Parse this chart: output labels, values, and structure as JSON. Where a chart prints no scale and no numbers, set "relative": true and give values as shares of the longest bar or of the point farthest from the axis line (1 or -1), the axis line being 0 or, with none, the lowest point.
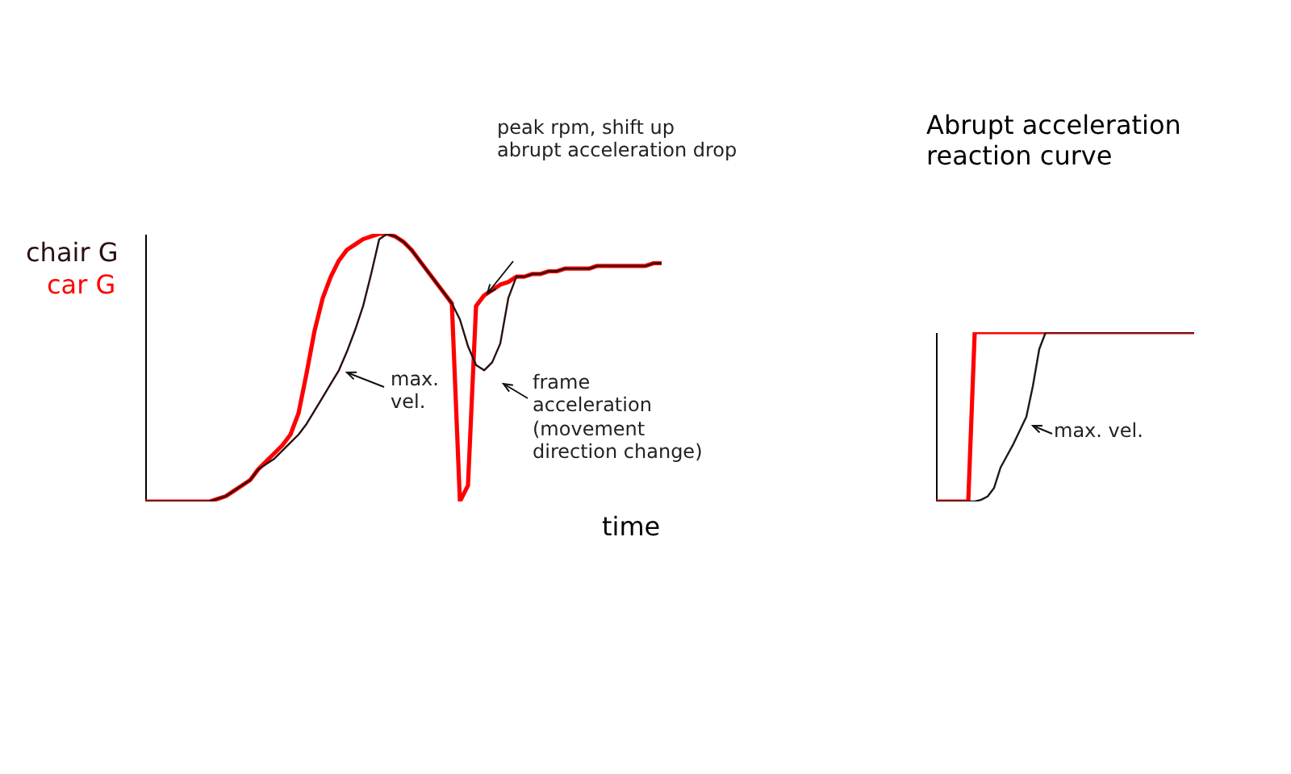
{
  "chart_data": [
    {
      "type": "line",
      "relative": true,
      "xlabel": "time",
      "categories": [
        null,
        null,
        null,
        null,
        null,
        null,
        null,
        null,
        null,
        null,
        null,
        null,
        null,
        null,
        null,
        null,
        null,
        null,
        null,
        null,
        null,
        null,
        null,
        null,
        null,
        null,
        null,
        null,
        null,
        null,
        null,
        null,
        null,
        null,
        null,
        null,
        null,
        null,
        null,
        null,
        null,
        null,
        null,
        null,
        null,
        null,
        null,
        null,
        null,
        null,
        null,
        null,
        null,
        null,
        null,
        null,
        null,
        null,
        null,
        null,
        null,
        null,
        null,
        null,
        null
      ],
      "series": [
        {
          "name": "car G",
          "color": "#ff0000",
          "values": [
            0,
            0,
            0,
            0,
            0,
            0,
            0,
            0,
            0,
            0.01,
            0.02,
            0.04,
            0.06,
            0.08,
            0.12,
            0.15,
            0.18,
            0.21,
            0.25,
            0.33,
            0.48,
            0.64,
            0.76,
            0.84,
            0.9,
            0.94,
            0.96,
            0.98,
            0.99,
            1,
            1,
            0.99,
            0.97,
            0.94,
            0.9,
            0.86,
            0.82,
            0.78,
            0.74,
            0,
            0.06,
            0.73,
            0.77,
            0.79,
            0.81,
            0.82,
            0.84,
            0.84,
            0.85,
            0.85,
            0.86,
            0.86,
            0.87,
            0.87,
            0.87,
            0.87,
            0.88,
            0.88,
            0.88,
            0.88,
            0.88,
            0.88,
            0.88,
            0.89,
            0.89
          ]
        },
        {
          "name": "chair G",
          "color": "#2a1010",
          "values": [
            0,
            0,
            0,
            0,
            0,
            0,
            0,
            0,
            0,
            0.01,
            0.02,
            0.04,
            0.06,
            0.08,
            0.12,
            0.14,
            0.16,
            0.19,
            0.22,
            0.25,
            0.29,
            0.34,
            0.39,
            0.44,
            0.49,
            0.56,
            0.64,
            0.73,
            0.85,
            0.98,
            1,
            0.99,
            0.97,
            0.94,
            0.9,
            0.86,
            0.82,
            0.78,
            0.74,
            0.68,
            0.58,
            0.51,
            0.49,
            0.52,
            0.59,
            0.76,
            0.84,
            0.84,
            0.85,
            0.85,
            0.86,
            0.86,
            0.87,
            0.87,
            0.87,
            0.87,
            0.88,
            0.88,
            0.88,
            0.88,
            0.88,
            0.88,
            0.88,
            0.89,
            0.89
          ]
        }
      ],
      "annotations": [
        "peak rpm, shift up\nabrupt acceleration drop",
        "max.\nvel.",
        "frame\nacceleration\n(movement\ndirection change)"
      ]
    },
    {
      "type": "line",
      "relative": true,
      "title": "Abrupt acceleration\nreaction curve",
      "categories": [
        null,
        null,
        null,
        null,
        null,
        null,
        null,
        null,
        null,
        null,
        null,
        null,
        null,
        null,
        null,
        null,
        null,
        null,
        null,
        null,
        null,
        null,
        null,
        null,
        null,
        null,
        null,
        null,
        null,
        null,
        null,
        null,
        null,
        null,
        null,
        null,
        null,
        null,
        null,
        null,
        null
      ],
      "series": [
        {
          "color": "#ff0000",
          "values": [
            0,
            0,
            0,
            0,
            0,
            0,
            1,
            1,
            1,
            1,
            1,
            1,
            1,
            1,
            1,
            1,
            1,
            1,
            1,
            1,
            1,
            1,
            1,
            1,
            1,
            1,
            1,
            1,
            1,
            1,
            1,
            1,
            1,
            1,
            1,
            1,
            1,
            1,
            1,
            1,
            1
          ]
        },
        {
          "color": "#1a1a1a",
          "values": [
            0,
            0,
            0,
            0,
            0,
            0,
            0,
            0.01,
            0.03,
            0.08,
            0.2,
            0.27,
            0.34,
            0.42,
            0.5,
            0.68,
            0.9,
            1,
            1,
            1,
            1,
            1,
            1,
            1,
            1,
            1,
            1,
            1,
            1,
            1,
            1,
            1,
            1,
            1,
            1,
            1,
            1,
            1,
            1,
            1,
            1
          ]
        }
      ],
      "annotations": [
        "max. vel."
      ]
    }
  ]
}
